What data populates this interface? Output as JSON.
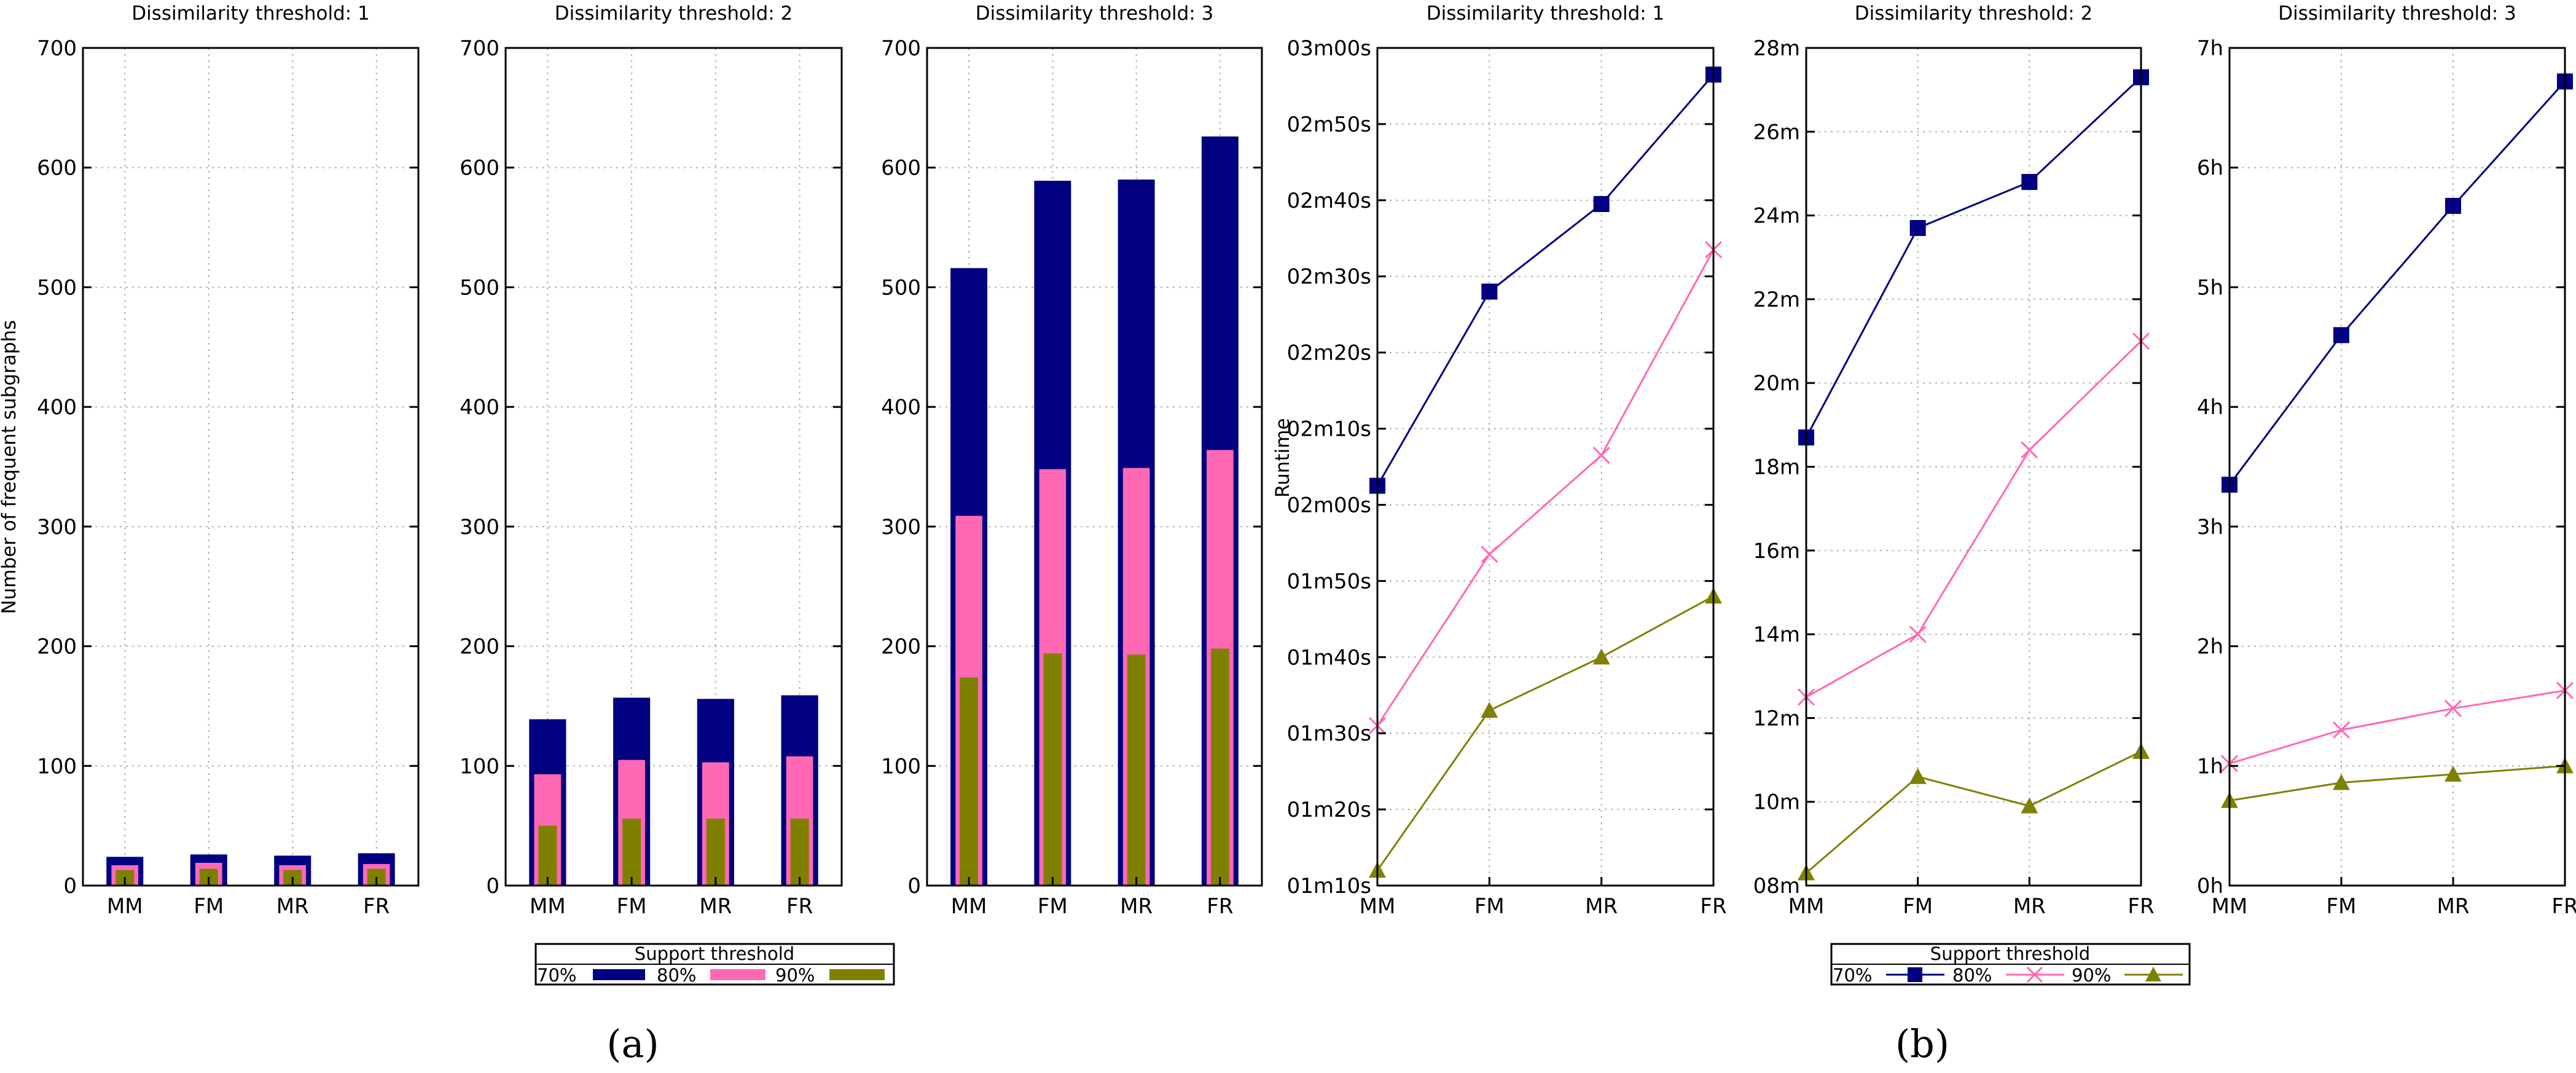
{
  "figure": {
    "caption_a": "(a)",
    "caption_b": "(b)"
  },
  "colors": {
    "s70": "#000080",
    "s80": "#ff69b4",
    "s90": "#808000",
    "grid": "#b0b0b0"
  },
  "legend": {
    "title": "Support threshold",
    "labels": [
      "70%",
      "80%",
      "90%"
    ]
  },
  "chart_data": [
    {
      "type": "bar",
      "title": "Dissimilarity threshold: 1",
      "ylabel": "Number of frequent subgraphs",
      "categories": [
        "MM",
        "FM",
        "MR",
        "FR"
      ],
      "ylim": [
        0,
        700
      ],
      "yticks": [
        0,
        100,
        200,
        300,
        400,
        500,
        600,
        700
      ],
      "ytick_labels": [
        "0",
        "100",
        "200",
        "300",
        "400",
        "500",
        "600",
        "700"
      ],
      "series": [
        {
          "name": "70%",
          "values": [
            24,
            26,
            25,
            27
          ]
        },
        {
          "name": "80%",
          "values": [
            17,
            19,
            17,
            18
          ]
        },
        {
          "name": "90%",
          "values": [
            13,
            14,
            13,
            14
          ]
        }
      ]
    },
    {
      "type": "bar",
      "title": "Dissimilarity threshold: 2",
      "categories": [
        "MM",
        "FM",
        "MR",
        "FR"
      ],
      "ylim": [
        0,
        700
      ],
      "yticks": [
        0,
        100,
        200,
        300,
        400,
        500,
        600,
        700
      ],
      "ytick_labels": [
        "0",
        "100",
        "200",
        "300",
        "400",
        "500",
        "600",
        "700"
      ],
      "series": [
        {
          "name": "70%",
          "values": [
            139,
            157,
            156,
            159
          ]
        },
        {
          "name": "80%",
          "values": [
            93,
            105,
            103,
            108
          ]
        },
        {
          "name": "90%",
          "values": [
            50,
            56,
            56,
            56
          ]
        }
      ]
    },
    {
      "type": "bar",
      "title": "Dissimilarity threshold: 3",
      "categories": [
        "MM",
        "FM",
        "MR",
        "FR"
      ],
      "ylim": [
        0,
        700
      ],
      "yticks": [
        0,
        100,
        200,
        300,
        400,
        500,
        600,
        700
      ],
      "ytick_labels": [
        "0",
        "100",
        "200",
        "300",
        "400",
        "500",
        "600",
        "700"
      ],
      "series": [
        {
          "name": "70%",
          "values": [
            516,
            589,
            590,
            626
          ]
        },
        {
          "name": "80%",
          "values": [
            309,
            348,
            349,
            364
          ]
        },
        {
          "name": "90%",
          "values": [
            174,
            194,
            193,
            198
          ]
        }
      ]
    },
    {
      "type": "line",
      "title": "Dissimilarity threshold: 1",
      "ylabel": "Runtime",
      "categories": [
        "MM",
        "FM",
        "MR",
        "FR"
      ],
      "unit": "seconds",
      "ylim": [
        70,
        180
      ],
      "yticks": [
        70,
        80,
        90,
        100,
        110,
        120,
        130,
        140,
        150,
        160,
        170,
        180
      ],
      "ytick_labels": [
        "01m10s",
        "01m20s",
        "01m30s",
        "01m40s",
        "01m50s",
        "02m00s",
        "02m10s",
        "02m20s",
        "02m30s",
        "02m40s",
        "02m50s",
        "03m00s"
      ],
      "series": [
        {
          "name": "70%",
          "marker": "square",
          "values": [
            122.5,
            148,
            159.5,
            176.5
          ]
        },
        {
          "name": "80%",
          "marker": "cross",
          "values": [
            91,
            113.5,
            126.5,
            153.5
          ]
        },
        {
          "name": "90%",
          "marker": "triangle",
          "values": [
            72,
            93,
            100,
            108
          ]
        }
      ]
    },
    {
      "type": "line",
      "title": "Dissimilarity threshold: 2",
      "categories": [
        "MM",
        "FM",
        "MR",
        "FR"
      ],
      "unit": "minutes",
      "ylim": [
        8,
        28
      ],
      "yticks": [
        8,
        10,
        12,
        14,
        16,
        18,
        20,
        22,
        24,
        26,
        28
      ],
      "ytick_labels": [
        "08m",
        "10m",
        "12m",
        "14m",
        "16m",
        "18m",
        "20m",
        "22m",
        "24m",
        "26m",
        "28m"
      ],
      "series": [
        {
          "name": "70%",
          "marker": "square",
          "values": [
            18.7,
            23.7,
            24.8,
            27.3
          ]
        },
        {
          "name": "80%",
          "marker": "cross",
          "values": [
            12.5,
            14.0,
            18.4,
            21.0
          ]
        },
        {
          "name": "90%",
          "marker": "triangle",
          "values": [
            8.3,
            10.6,
            9.9,
            11.2
          ]
        }
      ]
    },
    {
      "type": "line",
      "title": "Dissimilarity threshold: 3",
      "categories": [
        "MM",
        "FM",
        "MR",
        "FR"
      ],
      "unit": "hours",
      "ylim": [
        0,
        7
      ],
      "yticks": [
        0,
        1,
        2,
        3,
        4,
        5,
        6,
        7
      ],
      "ytick_labels": [
        "0h",
        "1h",
        "2h",
        "3h",
        "4h",
        "5h",
        "6h",
        "7h"
      ],
      "series": [
        {
          "name": "70%",
          "marker": "square",
          "values": [
            3.35,
            4.6,
            5.68,
            6.72
          ]
        },
        {
          "name": "80%",
          "marker": "cross",
          "values": [
            1.02,
            1.3,
            1.48,
            1.63
          ]
        },
        {
          "name": "90%",
          "marker": "triangle",
          "values": [
            0.71,
            0.86,
            0.93,
            1.0
          ]
        }
      ]
    }
  ]
}
